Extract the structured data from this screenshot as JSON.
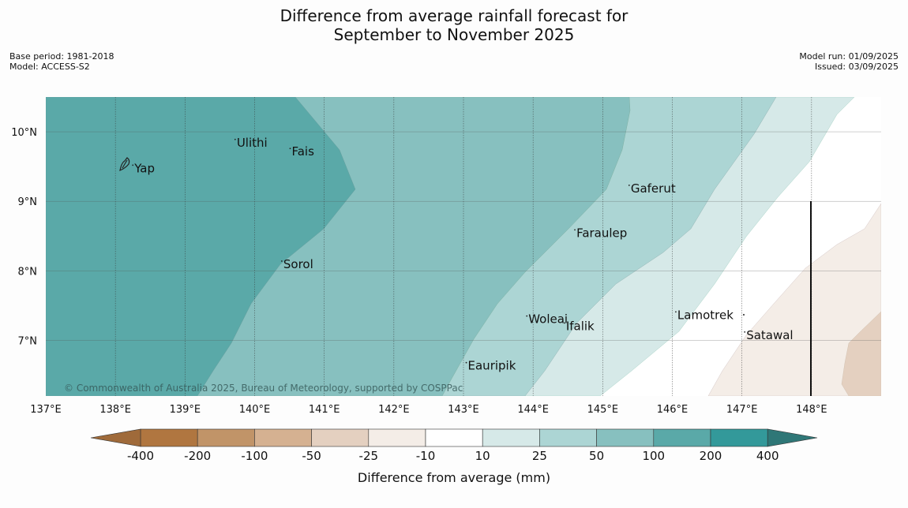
{
  "title": {
    "line1": "Difference from average rainfall forecast for",
    "line2": "September to November 2025"
  },
  "meta_left": {
    "base_period": "Base period: 1981-2018",
    "model": "Model: ACCESS-S2"
  },
  "meta_right": {
    "model_run": "Model run: 01/09/2025",
    "issued": "Issued: 03/09/2025"
  },
  "copyright": "© Commonwealth of Australia 2025, Bureau of Meteorology, supported by COSPPac",
  "axes": {
    "x_ticks": [
      "137°E",
      "138°E",
      "139°E",
      "140°E",
      "141°E",
      "142°E",
      "143°E",
      "144°E",
      "145°E",
      "146°E",
      "147°E",
      "148°E"
    ],
    "y_ticks": [
      "10°N",
      "9°N",
      "8°N",
      "7°N"
    ],
    "lon_range": [
      137,
      149
    ],
    "lat_range": [
      6.2,
      10.5
    ]
  },
  "places": [
    {
      "name": "Yap",
      "lon": 138.25,
      "lat": 9.52
    },
    {
      "name": "Ulithi",
      "lon": 139.72,
      "lat": 9.89
    },
    {
      "name": "Fais",
      "lon": 140.51,
      "lat": 9.76
    },
    {
      "name": "Gaferut",
      "lon": 145.38,
      "lat": 9.23
    },
    {
      "name": "Faraulep",
      "lon": 144.6,
      "lat": 8.59
    },
    {
      "name": "Sorol",
      "lon": 140.39,
      "lat": 8.14
    },
    {
      "name": "Lamotrek",
      "lon": 146.05,
      "lat": 7.41
    },
    {
      "name": "Woleai",
      "lon": 143.91,
      "lat": 7.35
    },
    {
      "name": "Ifalik",
      "lon": 144.45,
      "lat": 7.25
    },
    {
      "name": "Satawal",
      "lon": 147.04,
      "lat": 7.12
    },
    {
      "name": "Eauripik",
      "lon": 143.04,
      "lat": 6.68
    }
  ],
  "legend": {
    "label": "Difference from average (mm)",
    "ticks": [
      "-400",
      "-200",
      "-100",
      "-50",
      "-25",
      "-10",
      "10",
      "25",
      "50",
      "100",
      "200",
      "400"
    ],
    "colors": [
      "#9f6a3a",
      "#b07640",
      "#c19468",
      "#d5b191",
      "#e4d0c0",
      "#f4ede7",
      "#ffffff",
      "#d6e9e8",
      "#acd5d4",
      "#87c0bf",
      "#5aa9a8",
      "#33999a",
      "#2f7777"
    ]
  }
}
